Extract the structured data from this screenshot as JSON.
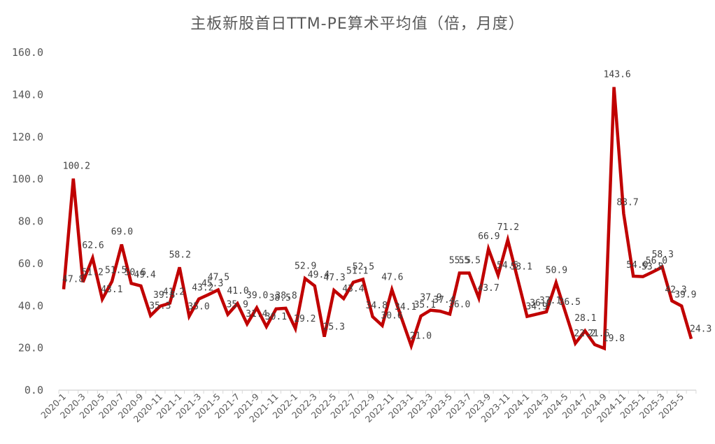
{
  "chart_data": {
    "type": "line",
    "title": "主板新股首日TTM-PE算术平均值（倍，月度）",
    "xlabel": "",
    "ylabel": "",
    "ylim": [
      0,
      160
    ],
    "yticks": [
      "0.0",
      "20.0",
      "40.0",
      "60.0",
      "80.0",
      "100.0",
      "120.0",
      "140.0",
      "160.0"
    ],
    "grid": false,
    "legend": null,
    "line_color": "#C00000",
    "x": [
      "2020-1",
      "2020-2",
      "2020-3",
      "2020-4",
      "2020-5",
      "2020-6",
      "2020-7",
      "2020-8",
      "2020-9",
      "2020-10",
      "2020-11",
      "2020-12",
      "2021-1",
      "2021-2",
      "2021-3",
      "2021-4",
      "2021-5",
      "2021-6",
      "2021-7",
      "2021-8",
      "2021-9",
      "2021-10",
      "2021-11",
      "2021-12",
      "2022-1",
      "2022-2",
      "2022-3",
      "2022-4",
      "2022-5",
      "2022-6",
      "2022-7",
      "2022-8",
      "2022-9",
      "2022-10",
      "2022-11",
      "2022-12",
      "2023-1",
      "2023-2",
      "2023-3",
      "2023-4",
      "2023-5",
      "2023-6",
      "2023-7",
      "2023-8",
      "2023-9",
      "2023-10",
      "2023-11",
      "2023-12",
      "2024-1",
      "2024-2",
      "2024-3",
      "2024-4",
      "2024-5",
      "2024-6",
      "2024-7",
      "2024-8",
      "2024-9",
      "2024-10",
      "2024-11",
      "2024-12",
      "2025-1",
      "2025-2",
      "2025-3",
      "2025-4",
      "2025-5",
      "2025-6"
    ],
    "xtick_labels": [
      "2020-1",
      "2020-3",
      "2020-5",
      "2020-7",
      "2020-9",
      "2020-11",
      "2021-1",
      "2021-3",
      "2021-5",
      "2021-7",
      "2021-9",
      "2021-11",
      "2022-1",
      "2022-3",
      "2022-5",
      "2022-7",
      "2022-9",
      "2022-11",
      "2023-1",
      "2023-3",
      "2023-5",
      "2023-7",
      "2023-9",
      "2023-11",
      "2024-1",
      "2024-3",
      "2024-5",
      "2024-7",
      "2024-9",
      "2024-11",
      "2025-1",
      "2025-3",
      "2025-5"
    ],
    "series": [
      {
        "name": "主板新股首日TTM-PE算术平均值",
        "values": [
          47.8,
          100.2,
          51.2,
          62.6,
          43.1,
          51.5,
          69.0,
          50.6,
          49.4,
          35.3,
          39.8,
          41.2,
          58.2,
          35.0,
          43.2,
          45.3,
          47.5,
          35.9,
          41.0,
          31.4,
          39.0,
          30.1,
          38.5,
          38.8,
          29.2,
          52.9,
          49.4,
          25.3,
          47.3,
          43.4,
          51.1,
          52.5,
          34.8,
          30.6,
          47.6,
          34.1,
          21.0,
          35.1,
          37.9,
          37.4,
          36.0,
          55.5,
          55.5,
          43.7,
          66.9,
          54.5,
          71.2,
          53.1,
          34.9,
          36.0,
          37.1,
          50.9,
          36.5,
          22.2,
          28.1,
          21.6,
          19.8,
          143.6,
          83.7,
          54.0,
          53.8,
          56.0,
          58.3,
          42.3,
          39.9,
          24.3
        ]
      }
    ]
  }
}
